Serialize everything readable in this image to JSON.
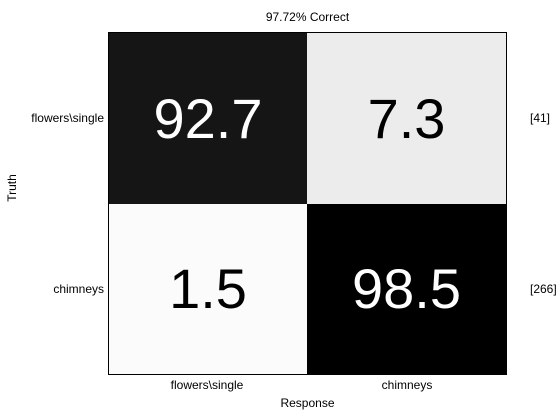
{
  "chart_data": {
    "type": "heatmap",
    "title": "97.72% Correct",
    "xlabel": "Response",
    "ylabel": "Truth",
    "rows": [
      "flowers\\single",
      "chimneys"
    ],
    "columns": [
      "flowers\\single",
      "chimneys"
    ],
    "values": [
      [
        92.7,
        7.3
      ],
      [
        1.5,
        98.5
      ]
    ],
    "values_text": [
      [
        "92.7",
        "7.3"
      ],
      [
        "1.5",
        "98.5"
      ]
    ],
    "row_counts": [
      "[41]",
      "[266]"
    ],
    "colormap": "grayscale, higher value darker",
    "cell_colors": [
      [
        "#151515",
        "#ececec"
      ],
      [
        "#fbfbfb",
        "#000000"
      ]
    ]
  }
}
